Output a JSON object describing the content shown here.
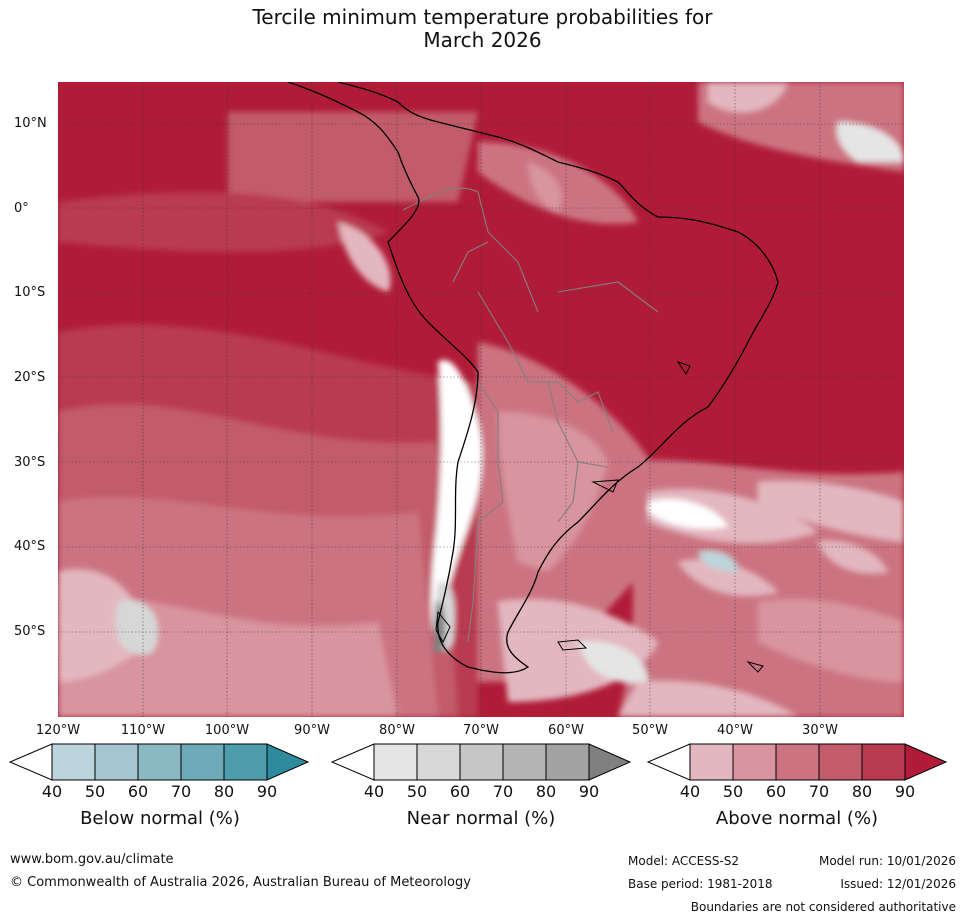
{
  "title": {
    "line1": "Tercile minimum temperature probabilities for",
    "line2": "March 2026"
  },
  "map": {
    "lat_labels": [
      "10°N",
      "0°",
      "10°S",
      "20°S",
      "30°S",
      "40°S",
      "50°S"
    ],
    "lon_labels": [
      "120°W",
      "110°W",
      "100°W",
      "90°W",
      "80°W",
      "70°W",
      "60°W",
      "50°W",
      "40°W",
      "30°W"
    ],
    "gridlines": true
  },
  "legend": {
    "ticks": [
      "40",
      "50",
      "60",
      "70",
      "80",
      "90"
    ],
    "below": {
      "title": "Below normal (%)",
      "colors": [
        "#ffffff",
        "#bcd5dc",
        "#a5c6ce",
        "#8ab8c3",
        "#6eaab7",
        "#4e9dad",
        "#2e8b9e"
      ]
    },
    "near": {
      "title": "Near normal (%)",
      "colors": [
        "#ffffff",
        "#e5e5e5",
        "#d7d7d7",
        "#c6c6c6",
        "#b4b4b4",
        "#a2a2a2",
        "#808080"
      ]
    },
    "above": {
      "title": "Above normal (%)",
      "colors": [
        "#ffffff",
        "#e3b7bf",
        "#d8949f",
        "#cc7382",
        "#c25b6a",
        "#b93a4f",
        "#b01c38"
      ]
    }
  },
  "footer": {
    "website": "www.bom.gov.au/climate",
    "copyright": "© Commonwealth of Australia 2026, Australian Bureau of Meteorology",
    "model": "Model: ACCESS-S2",
    "model_run": "Model run: 10/01/2026",
    "base_period": "Base period: 1981-2018",
    "issued": "Issued: 12/01/2026",
    "disclaimer": "Boundaries are not considered authoritative"
  }
}
